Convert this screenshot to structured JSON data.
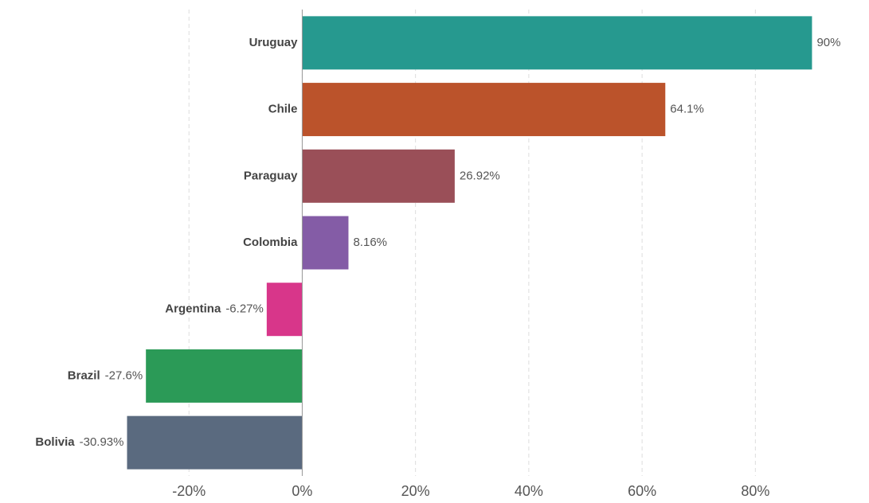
{
  "chart_data": {
    "type": "bar",
    "orientation": "horizontal",
    "categories": [
      "Uruguay",
      "Chile",
      "Paraguay",
      "Colombia",
      "Argentina",
      "Brazil",
      "Bolivia"
    ],
    "values": [
      90,
      64.1,
      26.92,
      8.16,
      -6.27,
      -27.6,
      -30.93
    ],
    "value_labels": [
      "90%",
      "64.1%",
      "26.92%",
      "8.16%",
      "-6.27%",
      "-27.6%",
      "-30.93%"
    ],
    "colors": [
      "#26998f",
      "#bb532b",
      "#9a4f58",
      "#845ca6",
      "#d8368a",
      "#2b9a57",
      "#5a6a7f"
    ],
    "xlim": [
      -31,
      90.5
    ],
    "xticks": [
      {
        "value": -20,
        "label": "-20%"
      },
      {
        "value": 0,
        "label": "0%"
      },
      {
        "value": 20,
        "label": "20%"
      },
      {
        "value": 40,
        "label": "40%"
      },
      {
        "value": 60,
        "label": "60%"
      },
      {
        "value": 80,
        "label": "80%"
      }
    ],
    "grid": true
  }
}
